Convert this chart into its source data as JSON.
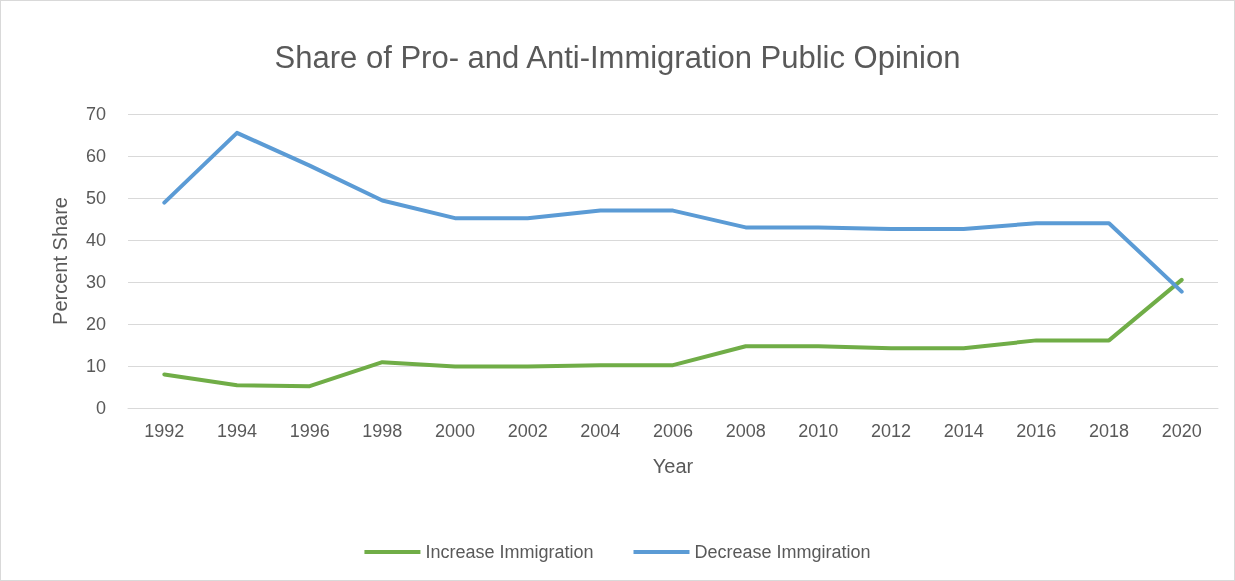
{
  "chart_data": {
    "type": "line",
    "title": "Share of Pro- and Anti-Immigration Public Opinion",
    "xlabel": "Year",
    "ylabel": "Percent Share",
    "categories": [
      "1992",
      "1994",
      "1996",
      "1998",
      "2000",
      "2002",
      "2004",
      "2006",
      "2008",
      "2010",
      "2012",
      "2014",
      "2016",
      "2018",
      "2020"
    ],
    "series": [
      {
        "name": "Increase Immigration",
        "color": "#70ad47",
        "values": [
          8,
          5.4,
          5.2,
          10.9,
          9.9,
          9.9,
          10.2,
          10.2,
          14.7,
          14.7,
          14.2,
          14.2,
          16.1,
          16.1,
          30.5
        ]
      },
      {
        "name": "Decrease Immgiration",
        "color": "#5b9bd5",
        "values": [
          48.9,
          65.5,
          57.7,
          49.4,
          45.2,
          45.2,
          47,
          47,
          43,
          43,
          42.6,
          42.6,
          44,
          44,
          27.7
        ]
      }
    ],
    "ylim": [
      0,
      70
    ],
    "yticks": [
      0,
      10,
      20,
      30,
      40,
      50,
      60,
      70
    ],
    "grid": "y",
    "legend": "bottom",
    "marker": "none",
    "line_style": "solid"
  }
}
